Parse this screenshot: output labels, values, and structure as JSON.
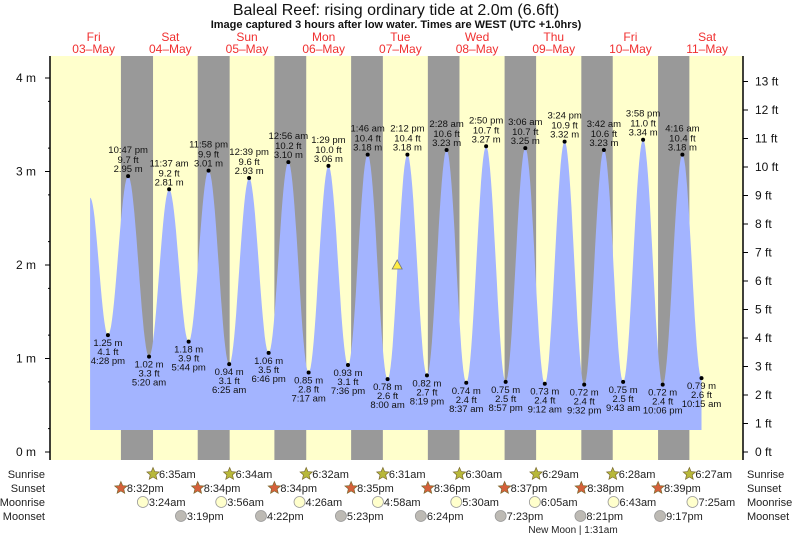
{
  "header": {
    "title": "Baleal Reef: rising  ordinary tide at 2.0m (6.6ft)",
    "subtitle": "Image captured 3 hours after low water. Times are WEST (UTC +1.0hrs)"
  },
  "colors": {
    "water": "#a3b4ff",
    "day": "#ffffcc",
    "night": "#999999",
    "day_label": "#f03030",
    "sunrise": "#b8b83a",
    "sunset": "#d5603a",
    "moonrise": "#ffffcc",
    "moonset": "#bdbab4"
  },
  "chart_data": {
    "type": "area",
    "title": "Baleal Reef: rising  ordinary tide at 2.0m (6.6ft)",
    "days": [
      {
        "dow": "Fri",
        "date": "03-May",
        "label": "03–May"
      },
      {
        "dow": "Sat",
        "date": "04-May",
        "label": "04–May"
      },
      {
        "dow": "Sun",
        "date": "05-May",
        "label": "05–May"
      },
      {
        "dow": "Mon",
        "date": "06-May",
        "label": "06–May"
      },
      {
        "dow": "Tue",
        "date": "07-May",
        "label": "07–May"
      },
      {
        "dow": "Wed",
        "date": "08-May",
        "label": "08–May"
      },
      {
        "dow": "Thu",
        "date": "09-May",
        "label": "09–May"
      },
      {
        "dow": "Fri",
        "date": "10-May",
        "label": "10–May"
      },
      {
        "dow": "Sat",
        "date": "11-May",
        "label": "11–May"
      }
    ],
    "y_left": {
      "unit": "m",
      "range": [
        0,
        4.2
      ],
      "ticks": [
        "0 m",
        "1 m",
        "2 m",
        "3 m",
        "4 m"
      ]
    },
    "y_right": {
      "unit": "ft",
      "ticks": [
        "0 ft",
        "1 ft",
        "2 ft",
        "3 ft",
        "4 ft",
        "5 ft",
        "6 ft",
        "7 ft",
        "8 ft",
        "9 ft",
        "10 ft",
        "11 ft",
        "12 ft",
        "13 ft"
      ]
    },
    "curve_start": {
      "date": "03-May",
      "time": "10:53 am",
      "m": 2.72
    },
    "now": {
      "date": "07-May",
      "time": "11:00 am",
      "m": 2.0
    },
    "extremes": [
      {
        "type": "low",
        "date": "03-May",
        "time": "4:28 pm",
        "m": "1.25 m",
        "ft": "4.1 ft"
      },
      {
        "type": "high",
        "date": "03-May",
        "time": "10:47 pm",
        "m": "2.95 m",
        "ft": "9.7 ft"
      },
      {
        "type": "low",
        "date": "04-May",
        "time": "5:20 am",
        "m": "1.02 m",
        "ft": "3.3 ft"
      },
      {
        "type": "high",
        "date": "04-May",
        "time": "11:37 am",
        "m": "2.81 m",
        "ft": "9.2 ft"
      },
      {
        "type": "low",
        "date": "04-May",
        "time": "5:44 pm",
        "m": "1.18 m",
        "ft": "3.9 ft"
      },
      {
        "type": "high",
        "date": "04-May",
        "time": "11:58 pm",
        "m": "3.01 m",
        "ft": "9.9 ft"
      },
      {
        "type": "low",
        "date": "05-May",
        "time": "6:25 am",
        "m": "0.94 m",
        "ft": "3.1 ft"
      },
      {
        "type": "high",
        "date": "05-May",
        "time": "12:39 pm",
        "m": "2.93 m",
        "ft": "9.6 ft"
      },
      {
        "type": "low",
        "date": "05-May",
        "time": "6:46 pm",
        "m": "1.06 m",
        "ft": "3.5 ft"
      },
      {
        "type": "high",
        "date": "06-May",
        "time": "12:56 am",
        "m": "3.10 m",
        "ft": "10.2 ft"
      },
      {
        "type": "low",
        "date": "06-May",
        "time": "7:17 am",
        "m": "0.85 m",
        "ft": "2.8 ft"
      },
      {
        "type": "high",
        "date": "06-May",
        "time": "1:29 pm",
        "m": "3.06 m",
        "ft": "10.0 ft"
      },
      {
        "type": "low",
        "date": "06-May",
        "time": "7:36 pm",
        "m": "0.93 m",
        "ft": "3.1 ft"
      },
      {
        "type": "high",
        "date": "07-May",
        "time": "1:46 am",
        "m": "3.18 m",
        "ft": "10.4 ft"
      },
      {
        "type": "low",
        "date": "07-May",
        "time": "8:00 am",
        "m": "0.78 m",
        "ft": "2.6 ft"
      },
      {
        "type": "high",
        "date": "07-May",
        "time": "2:12 pm",
        "m": "3.18 m",
        "ft": "10.4 ft"
      },
      {
        "type": "low",
        "date": "07-May",
        "time": "8:19 pm",
        "m": "0.82 m",
        "ft": "2.7 ft"
      },
      {
        "type": "high",
        "date": "08-May",
        "time": "2:28 am",
        "m": "3.23 m",
        "ft": "10.6 ft"
      },
      {
        "type": "low",
        "date": "08-May",
        "time": "8:37 am",
        "m": "0.74 m",
        "ft": "2.4 ft"
      },
      {
        "type": "high",
        "date": "08-May",
        "time": "2:50 pm",
        "m": "3.27 m",
        "ft": "10.7 ft"
      },
      {
        "type": "low",
        "date": "08-May",
        "time": "8:57 pm",
        "m": "0.75 m",
        "ft": "2.5 ft"
      },
      {
        "type": "high",
        "date": "09-May",
        "time": "3:06 am",
        "m": "3.25 m",
        "ft": "10.7 ft"
      },
      {
        "type": "low",
        "date": "09-May",
        "time": "9:12 am",
        "m": "0.73 m",
        "ft": "2.4 ft"
      },
      {
        "type": "high",
        "date": "09-May",
        "time": "3:24 pm",
        "m": "3.32 m",
        "ft": "10.9 ft"
      },
      {
        "type": "low",
        "date": "09-May",
        "time": "9:32 pm",
        "m": "0.72 m",
        "ft": "2.4 ft"
      },
      {
        "type": "high",
        "date": "10-May",
        "time": "3:42 am",
        "m": "3.23 m",
        "ft": "10.6 ft"
      },
      {
        "type": "low",
        "date": "10-May",
        "time": "9:43 am",
        "m": "0.75 m",
        "ft": "2.5 ft"
      },
      {
        "type": "high",
        "date": "10-May",
        "time": "3:58 pm",
        "m": "3.34 m",
        "ft": "11.0 ft"
      },
      {
        "type": "low",
        "date": "10-May",
        "time": "10:06 pm",
        "m": "0.72 m",
        "ft": "2.4 ft"
      },
      {
        "type": "high",
        "date": "11-May",
        "time": "4:16 am",
        "m": "3.18 m",
        "ft": "10.4 ft"
      },
      {
        "type": "low",
        "date": "11-May",
        "time": "10:15 am",
        "m": "0.79 m",
        "ft": "2.6 ft"
      }
    ],
    "astro": {
      "labels": {
        "sunrise": "Sunrise",
        "sunset": "Sunset",
        "moonrise": "Moonrise",
        "moonset": "Moonset"
      },
      "sunrise": [
        {
          "date": "04-May",
          "time": "6:35am"
        },
        {
          "date": "05-May",
          "time": "6:34am"
        },
        {
          "date": "06-May",
          "time": "6:32am"
        },
        {
          "date": "07-May",
          "time": "6:31am"
        },
        {
          "date": "08-May",
          "time": "6:30am"
        },
        {
          "date": "09-May",
          "time": "6:29am"
        },
        {
          "date": "10-May",
          "time": "6:28am"
        },
        {
          "date": "11-May",
          "time": "6:27am"
        }
      ],
      "sunset": [
        {
          "date": "03-May",
          "time": "8:32pm"
        },
        {
          "date": "04-May",
          "time": "8:34pm"
        },
        {
          "date": "05-May",
          "time": "8:34pm"
        },
        {
          "date": "06-May",
          "time": "8:35pm"
        },
        {
          "date": "07-May",
          "time": "8:36pm"
        },
        {
          "date": "08-May",
          "time": "8:37pm"
        },
        {
          "date": "09-May",
          "time": "8:38pm"
        },
        {
          "date": "10-May",
          "time": "8:39pm"
        }
      ],
      "moonrise": [
        {
          "date": "04-May",
          "time": "3:24am"
        },
        {
          "date": "05-May",
          "time": "3:56am"
        },
        {
          "date": "06-May",
          "time": "4:26am"
        },
        {
          "date": "07-May",
          "time": "4:58am"
        },
        {
          "date": "08-May",
          "time": "5:30am"
        },
        {
          "date": "09-May",
          "time": "6:05am"
        },
        {
          "date": "10-May",
          "time": "6:43am"
        },
        {
          "date": "11-May",
          "time": "7:25am"
        }
      ],
      "moonset": [
        {
          "date": "04-May",
          "time": "3:19pm"
        },
        {
          "date": "05-May",
          "time": "4:22pm"
        },
        {
          "date": "06-May",
          "time": "5:23pm"
        },
        {
          "date": "07-May",
          "time": "6:24pm"
        },
        {
          "date": "08-May",
          "time": "7:23pm"
        },
        {
          "date": "09-May",
          "time": "8:21pm"
        },
        {
          "date": "10-May",
          "time": "9:17pm"
        }
      ],
      "moon_phase": "New Moon | 1:31am"
    }
  }
}
